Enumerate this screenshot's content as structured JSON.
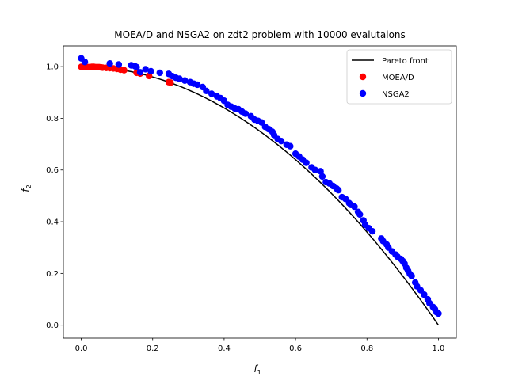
{
  "chart_data": {
    "type": "scatter",
    "title": "MOEA/D and NSGA2 on zdt2 problem with 10000 evalutaions",
    "xlabel": "f",
    "xlabel_sub": "1",
    "ylabel": "f",
    "ylabel_sub": "2",
    "xlim": [
      -0.05,
      1.05
    ],
    "ylim": [
      -0.05,
      1.08
    ],
    "xticks": [
      0.0,
      0.2,
      0.4,
      0.6,
      0.8,
      1.0
    ],
    "xtick_labels": [
      "0.0",
      "0.2",
      "0.4",
      "0.6",
      "0.8",
      "1.0"
    ],
    "yticks": [
      0.0,
      0.2,
      0.4,
      0.6,
      0.8,
      1.0
    ],
    "ytick_labels": [
      "0.0",
      "0.2",
      "0.4",
      "0.6",
      "0.8",
      "1.0"
    ],
    "grid": false,
    "legend_position": "top-right",
    "pareto_front": {
      "name": "Pareto front",
      "color": "#000000",
      "function": "1 - x^2",
      "x_range": [
        0,
        1
      ]
    },
    "series": [
      {
        "name": "MOEA/D",
        "color": "#ff0000",
        "points": [
          [
            0.0,
            0.999
          ],
          [
            0.005,
            0.999
          ],
          [
            0.01,
            0.998
          ],
          [
            0.015,
            0.998
          ],
          [
            0.02,
            0.998
          ],
          [
            0.025,
            0.998
          ],
          [
            0.03,
            0.999
          ],
          [
            0.035,
            0.999
          ],
          [
            0.04,
            0.998
          ],
          [
            0.045,
            0.998
          ],
          [
            0.05,
            0.998
          ],
          [
            0.055,
            0.997
          ],
          [
            0.06,
            0.996
          ],
          [
            0.07,
            0.995
          ],
          [
            0.08,
            0.994
          ],
          [
            0.09,
            0.993
          ],
          [
            0.1,
            0.991
          ],
          [
            0.11,
            0.988
          ],
          [
            0.12,
            0.986
          ],
          [
            0.155,
            0.976
          ],
          [
            0.165,
            0.973
          ],
          [
            0.19,
            0.964
          ],
          [
            0.245,
            0.94
          ],
          [
            0.25,
            0.938
          ]
        ]
      },
      {
        "name": "NSGA2",
        "color": "#0000ff",
        "points": [
          [
            0.0,
            1.032
          ],
          [
            0.01,
            1.018
          ],
          [
            0.08,
            1.012
          ],
          [
            0.105,
            1.008
          ],
          [
            0.14,
            1.005
          ],
          [
            0.15,
            1.002
          ],
          [
            0.155,
            0.998
          ],
          [
            0.165,
            0.978
          ],
          [
            0.18,
            0.99
          ],
          [
            0.195,
            0.982
          ],
          [
            0.22,
            0.976
          ],
          [
            0.245,
            0.972
          ],
          [
            0.255,
            0.963
          ],
          [
            0.265,
            0.957
          ],
          [
            0.275,
            0.953
          ],
          [
            0.29,
            0.946
          ],
          [
            0.305,
            0.94
          ],
          [
            0.315,
            0.934
          ],
          [
            0.325,
            0.93
          ],
          [
            0.34,
            0.921
          ],
          [
            0.35,
            0.906
          ],
          [
            0.365,
            0.895
          ],
          [
            0.38,
            0.885
          ],
          [
            0.39,
            0.878
          ],
          [
            0.4,
            0.868
          ],
          [
            0.41,
            0.852
          ],
          [
            0.42,
            0.845
          ],
          [
            0.43,
            0.838
          ],
          [
            0.44,
            0.835
          ],
          [
            0.45,
            0.826
          ],
          [
            0.46,
            0.818
          ],
          [
            0.475,
            0.808
          ],
          [
            0.485,
            0.795
          ],
          [
            0.495,
            0.79
          ],
          [
            0.505,
            0.784
          ],
          [
            0.515,
            0.767
          ],
          [
            0.525,
            0.758
          ],
          [
            0.535,
            0.748
          ],
          [
            0.54,
            0.735
          ],
          [
            0.55,
            0.72
          ],
          [
            0.56,
            0.712
          ],
          [
            0.575,
            0.698
          ],
          [
            0.585,
            0.692
          ],
          [
            0.6,
            0.663
          ],
          [
            0.61,
            0.652
          ],
          [
            0.62,
            0.64
          ],
          [
            0.63,
            0.628
          ],
          [
            0.645,
            0.61
          ],
          [
            0.655,
            0.6
          ],
          [
            0.67,
            0.595
          ],
          [
            0.675,
            0.575
          ],
          [
            0.685,
            0.553
          ],
          [
            0.695,
            0.548
          ],
          [
            0.705,
            0.538
          ],
          [
            0.715,
            0.528
          ],
          [
            0.72,
            0.522
          ],
          [
            0.73,
            0.495
          ],
          [
            0.74,
            0.488
          ],
          [
            0.75,
            0.472
          ],
          [
            0.755,
            0.465
          ],
          [
            0.765,
            0.458
          ],
          [
            0.775,
            0.438
          ],
          [
            0.78,
            0.428
          ],
          [
            0.79,
            0.405
          ],
          [
            0.795,
            0.388
          ],
          [
            0.805,
            0.375
          ],
          [
            0.815,
            0.363
          ],
          [
            0.84,
            0.335
          ],
          [
            0.845,
            0.325
          ],
          [
            0.855,
            0.312
          ],
          [
            0.86,
            0.3
          ],
          [
            0.87,
            0.285
          ],
          [
            0.88,
            0.273
          ],
          [
            0.885,
            0.265
          ],
          [
            0.895,
            0.256
          ],
          [
            0.9,
            0.248
          ],
          [
            0.905,
            0.238
          ],
          [
            0.91,
            0.222
          ],
          [
            0.915,
            0.21
          ],
          [
            0.92,
            0.198
          ],
          [
            0.925,
            0.19
          ],
          [
            0.935,
            0.165
          ],
          [
            0.94,
            0.15
          ],
          [
            0.95,
            0.135
          ],
          [
            0.96,
            0.118
          ],
          [
            0.97,
            0.1
          ],
          [
            0.975,
            0.085
          ],
          [
            0.985,
            0.07
          ],
          [
            0.99,
            0.062
          ],
          [
            0.995,
            0.05
          ],
          [
            1.0,
            0.045
          ]
        ]
      }
    ]
  }
}
